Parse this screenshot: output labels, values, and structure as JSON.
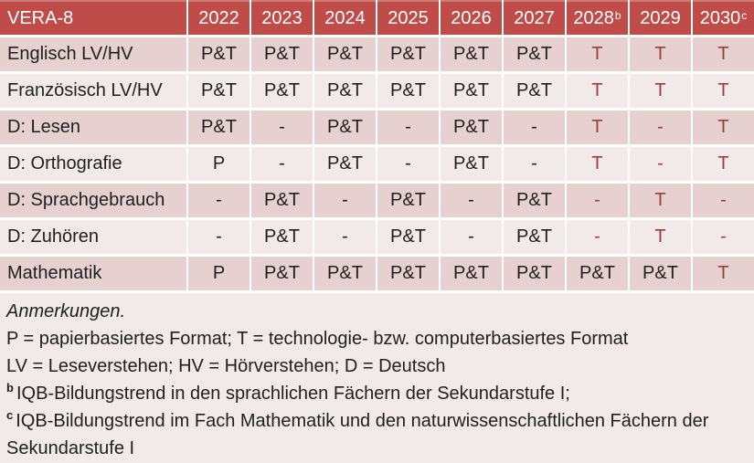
{
  "colors": {
    "header_bg": "#BF4C49",
    "header_border": "#CE7B78",
    "header_text": "#FFFFFF",
    "band_dark": "#E6D1D0",
    "band_light": "#F2EAE9",
    "notes_bg": "#F1EAE8",
    "red_text": "#9E3C39",
    "text": "#1F1F1F"
  },
  "table": {
    "header": {
      "title": "VERA-8",
      "years": [
        {
          "label": "2022",
          "sup": ""
        },
        {
          "label": "2023",
          "sup": ""
        },
        {
          "label": "2024",
          "sup": ""
        },
        {
          "label": "2025",
          "sup": ""
        },
        {
          "label": "2026",
          "sup": ""
        },
        {
          "label": "2027",
          "sup": ""
        },
        {
          "label": "2028",
          "sup": "b"
        },
        {
          "label": "2029",
          "sup": ""
        },
        {
          "label": "2030",
          "sup": "c"
        }
      ]
    },
    "rows": [
      {
        "label": "Englisch LV/HV",
        "cells": [
          {
            "text": "P&T",
            "red": false
          },
          {
            "text": "P&T",
            "red": false
          },
          {
            "text": "P&T",
            "red": false
          },
          {
            "text": "P&T",
            "red": false
          },
          {
            "text": "P&T",
            "red": false
          },
          {
            "text": "P&T",
            "red": false
          },
          {
            "text": "T",
            "red": true
          },
          {
            "text": "T",
            "red": true
          },
          {
            "text": "T",
            "red": true
          }
        ]
      },
      {
        "label": "Französisch LV/HV",
        "cells": [
          {
            "text": "P&T",
            "red": false
          },
          {
            "text": "P&T",
            "red": false
          },
          {
            "text": "P&T",
            "red": false
          },
          {
            "text": "P&T",
            "red": false
          },
          {
            "text": "P&T",
            "red": false
          },
          {
            "text": "P&T",
            "red": false
          },
          {
            "text": "T",
            "red": true
          },
          {
            "text": "T",
            "red": true
          },
          {
            "text": "T",
            "red": true
          }
        ]
      },
      {
        "label": "D: Lesen",
        "cells": [
          {
            "text": "P&T",
            "red": false
          },
          {
            "text": "-",
            "red": false
          },
          {
            "text": "P&T",
            "red": false
          },
          {
            "text": "-",
            "red": false
          },
          {
            "text": "P&T",
            "red": false
          },
          {
            "text": "-",
            "red": false
          },
          {
            "text": "T",
            "red": true
          },
          {
            "text": "-",
            "red": true
          },
          {
            "text": "T",
            "red": true
          }
        ]
      },
      {
        "label": "D: Orthografie",
        "cells": [
          {
            "text": "P",
            "red": false
          },
          {
            "text": "-",
            "red": false
          },
          {
            "text": "P&T",
            "red": false
          },
          {
            "text": "-",
            "red": false
          },
          {
            "text": "P&T",
            "red": false
          },
          {
            "text": "-",
            "red": false
          },
          {
            "text": "T",
            "red": true
          },
          {
            "text": "-",
            "red": true
          },
          {
            "text": "T",
            "red": true
          }
        ]
      },
      {
        "label": "D: Sprachgebrauch",
        "cells": [
          {
            "text": "-",
            "red": false
          },
          {
            "text": "P&T",
            "red": false
          },
          {
            "text": "-",
            "red": false
          },
          {
            "text": "P&T",
            "red": false
          },
          {
            "text": "-",
            "red": false
          },
          {
            "text": "P&T",
            "red": false
          },
          {
            "text": "-",
            "red": true
          },
          {
            "text": "T",
            "red": true
          },
          {
            "text": "-",
            "red": true
          }
        ]
      },
      {
        "label": "D: Zuhören",
        "cells": [
          {
            "text": "-",
            "red": false
          },
          {
            "text": "P&T",
            "red": false
          },
          {
            "text": "-",
            "red": false
          },
          {
            "text": "P&T",
            "red": false
          },
          {
            "text": "-",
            "red": false
          },
          {
            "text": "P&T",
            "red": false
          },
          {
            "text": "-",
            "red": true
          },
          {
            "text": "T",
            "red": true
          },
          {
            "text": "-",
            "red": true
          }
        ]
      },
      {
        "label": "Mathematik",
        "cells": [
          {
            "text": "P",
            "red": false
          },
          {
            "text": "P&T",
            "red": false
          },
          {
            "text": "P&T",
            "red": false
          },
          {
            "text": "P&T",
            "red": false
          },
          {
            "text": "P&T",
            "red": false
          },
          {
            "text": "P&T",
            "red": false
          },
          {
            "text": "P&T",
            "red": false
          },
          {
            "text": "P&T",
            "red": false
          },
          {
            "text": "T",
            "red": true
          }
        ]
      }
    ]
  },
  "notes": {
    "title": "Anmerkungen.",
    "lines": [
      {
        "sup": "",
        "text": "P = papierbasiertes Format; T = technologie- bzw. computerbasiertes Format"
      },
      {
        "sup": "",
        "text": "LV = Leseverstehen; HV = Hörverstehen; D = Deutsch"
      },
      {
        "sup": "b",
        "text": "IQB-Bildungstrend in den sprachlichen Fächern der Sekundarstufe I;"
      },
      {
        "sup": "c",
        "text": "IQB-Bildungstrend im Fach Mathematik und den naturwissenschaftlichen Fächern der Sekundarstufe I"
      }
    ]
  }
}
